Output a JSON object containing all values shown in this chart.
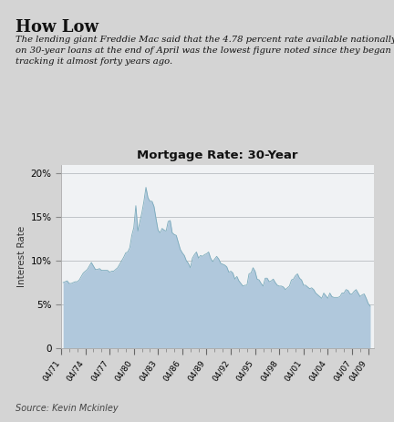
{
  "title": "Mortgage Rate: 30-Year",
  "headline": "How Low",
  "subtitle": "The lending giant Freddie Mac said that the 4.78 percent rate available nationally\non 30-year loans at the end of April was the lowest figure noted since they began\ntracking it almost forty years ago.",
  "source": "Source: Kevin Mckinley",
  "ylabel": "Interest Rate",
  "bg_color": "#d4d4d4",
  "chart_bg_color": "#e8ecf0",
  "plot_area_bg": "#f0f2f4",
  "fill_color": "#b0c8dc",
  "fill_edge_color": "#7aaabb",
  "grid_color": "#c0c4c8",
  "yticks": [
    0,
    5,
    10,
    15,
    20
  ],
  "ytick_labels": [
    "0",
    "5%",
    "10%",
    "15%",
    "20%"
  ],
  "xtick_labels": [
    "04/71",
    "04/74",
    "04/77",
    "04/80",
    "04/83",
    "04/86",
    "04/89",
    "04/92",
    "04/95",
    "04/98",
    "04/01",
    "04/04",
    "04/07",
    "04/09"
  ],
  "xtick_years": [
    1971,
    1974,
    1977,
    1980,
    1983,
    1986,
    1989,
    1992,
    1995,
    1998,
    2001,
    2004,
    2007,
    2009
  ],
  "ylim": [
    0,
    21
  ],
  "xlim": [
    1971,
    2009.75
  ],
  "extra_data": {
    "1971q2": 7.5,
    "1971q3": 7.6,
    "1971q4": 7.7,
    "1972q1": 7.4,
    "1972q2": 7.4,
    "1972q3": 7.5,
    "1972q4": 7.6,
    "1973q1": 7.6,
    "1973q2": 7.8,
    "1973q3": 8.2,
    "1973q4": 8.6,
    "1974q1": 8.8,
    "1974q2": 9.0,
    "1974q3": 9.4,
    "1974q4": 9.8,
    "1975q1": 9.4,
    "1975q2": 9.0,
    "1975q3": 9.0,
    "1975q4": 9.1,
    "1976q1": 8.9,
    "1976q2": 8.9,
    "1976q3": 8.9,
    "1976q4": 8.9,
    "1977q1": 8.7,
    "1977q2": 8.8,
    "1977q3": 8.8,
    "1977q4": 9.0,
    "1978q1": 9.2,
    "1978q2": 9.6,
    "1978q3": 10.0,
    "1978q4": 10.4,
    "1979q1": 10.9,
    "1979q2": 11.0,
    "1979q3": 11.5,
    "1979q4": 12.9,
    "1980q1": 13.8,
    "1980q2": 16.3,
    "1980q3": 13.4,
    "1980q4": 14.5,
    "1981q1": 15.5,
    "1981q2": 16.8,
    "1981q3": 18.4,
    "1981q4": 17.2,
    "1982q1": 16.8,
    "1982q2": 16.8,
    "1982q3": 16.2,
    "1982q4": 14.8,
    "1983q1": 13.5,
    "1983q2": 13.2,
    "1983q3": 13.7,
    "1983q4": 13.5,
    "1984q1": 13.4,
    "1984q2": 14.5,
    "1984q3": 14.6,
    "1984q4": 13.2,
    "1985q1": 13.0,
    "1985q2": 12.9,
    "1985q3": 12.1,
    "1985q4": 11.3,
    "1986q1": 10.9,
    "1986q2": 10.6,
    "1986q3": 10.0,
    "1986q4": 9.7,
    "1987q1": 9.2,
    "1987q2": 10.3,
    "1987q3": 10.7,
    "1987q4": 11.0,
    "1988q1": 10.3,
    "1988q2": 10.6,
    "1988q3": 10.5,
    "1988q4": 10.7,
    "1989q1": 10.8,
    "1989q2": 11.0,
    "1989q3": 10.3,
    "1989q4": 9.9,
    "1990q1": 10.2,
    "1990q2": 10.5,
    "1990q3": 10.2,
    "1990q4": 9.7,
    "1991q1": 9.6,
    "1991q2": 9.5,
    "1991q3": 9.3,
    "1991q4": 8.7,
    "1992q1": 8.8,
    "1992q2": 8.6,
    "1992q3": 7.9,
    "1992q4": 8.2,
    "1993q1": 7.7,
    "1993q2": 7.4,
    "1993q3": 7.1,
    "1993q4": 7.2,
    "1994q1": 7.2,
    "1994q2": 8.5,
    "1994q3": 8.6,
    "1994q4": 9.2,
    "1995q1": 8.8,
    "1995q2": 7.9,
    "1995q3": 7.8,
    "1995q4": 7.4,
    "1996q1": 7.1,
    "1996q2": 8.0,
    "1996q3": 8.0,
    "1996q4": 7.6,
    "1997q1": 7.7,
    "1997q2": 7.9,
    "1997q3": 7.5,
    "1997q4": 7.2,
    "1998q1": 7.1,
    "1998q2": 7.1,
    "1998q3": 7.0,
    "1998q4": 6.7,
    "1999q1": 6.9,
    "1999q2": 7.1,
    "1999q3": 7.8,
    "1999q4": 7.9,
    "2000q1": 8.3,
    "2000q2": 8.5,
    "2000q3": 8.0,
    "2000q4": 7.8,
    "2001q1": 7.2,
    "2001q2": 7.2,
    "2001q3": 7.0,
    "2001q4": 6.8,
    "2002q1": 6.9,
    "2002q2": 6.7,
    "2002q3": 6.3,
    "2002q4": 6.1,
    "2003q1": 5.9,
    "2003q2": 5.7,
    "2003q3": 6.3,
    "2003q4": 6.0,
    "2004q1": 5.7,
    "2004q2": 6.3,
    "2004q3": 5.9,
    "2004q4": 5.8,
    "2005q1": 5.8,
    "2005q2": 5.8,
    "2005q3": 5.9,
    "2005q4": 6.3,
    "2006q1": 6.3,
    "2006q2": 6.7,
    "2006q3": 6.6,
    "2006q4": 6.2,
    "2007q1": 6.2,
    "2007q2": 6.5,
    "2007q3": 6.7,
    "2007q4": 6.3,
    "2008q1": 5.9,
    "2008q2": 6.1,
    "2008q3": 6.2,
    "2008q4": 5.7,
    "2009q1": 5.1,
    "2009q2": 4.8
  }
}
